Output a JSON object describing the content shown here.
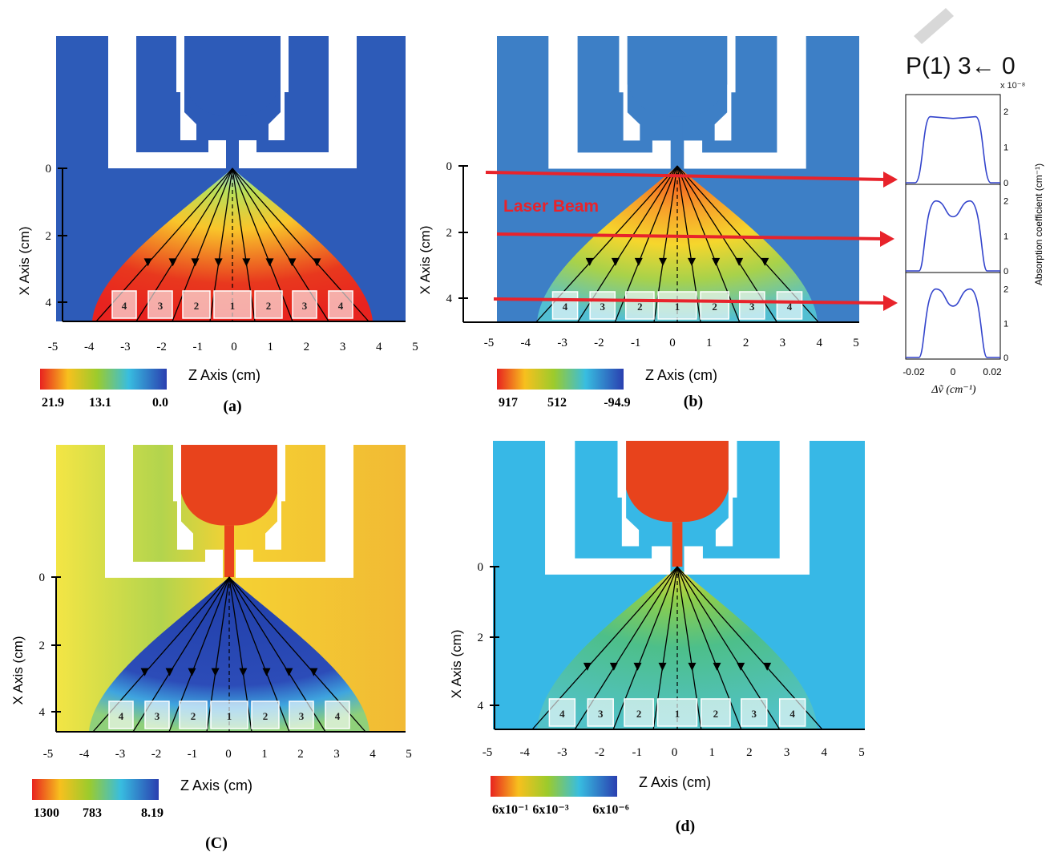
{
  "header": {
    "transition": "P(1) 3← 0"
  },
  "panels": [
    {
      "id": "a",
      "label": "(a)",
      "xaxis": "Z Axis (cm)",
      "yaxis": "X Axis  (cm)",
      "xticks": [
        "-5",
        "-4",
        "-3",
        "-2",
        "-1",
        "0",
        "1",
        "2",
        "3",
        "4",
        "5"
      ],
      "yticks": [
        "0",
        "2",
        "4"
      ],
      "colorbar": [
        "21.9",
        "13.1",
        "0.0"
      ],
      "cells": [
        "4",
        "3",
        "2",
        "1",
        "2",
        "3",
        "4"
      ],
      "scheme": "a"
    },
    {
      "id": "b",
      "label": "(b)",
      "xaxis": "Z Axis (cm)",
      "yaxis": "X Axis  (cm)",
      "xticks": [
        "-5",
        "-4",
        "-3",
        "-2",
        "-1",
        "0",
        "1",
        "2",
        "3",
        "4",
        "5"
      ],
      "yticks": [
        "0",
        "2",
        "4"
      ],
      "colorbar": [
        "917",
        "512",
        "-94.9"
      ],
      "cells": [
        "4",
        "3",
        "2",
        "1",
        "2",
        "3",
        "4"
      ],
      "scheme": "b",
      "annotation": "Laser Beam"
    },
    {
      "id": "c",
      "label": "(C)",
      "xaxis": "Z Axis (cm)",
      "yaxis": "X Axis  (cm)",
      "xticks": [
        "-5",
        "-4",
        "-3",
        "-2",
        "-1",
        "0",
        "1",
        "2",
        "3",
        "4",
        "5"
      ],
      "yticks": [
        "0",
        "2",
        "4"
      ],
      "colorbar": [
        "1300",
        "783",
        "8.19"
      ],
      "cells": [
        "4",
        "3",
        "2",
        "1",
        "2",
        "3",
        "4"
      ],
      "scheme": "c"
    },
    {
      "id": "d",
      "label": "(d)",
      "xaxis": "Z Axis (cm)",
      "yaxis": "X Axis  (cm)",
      "xticks": [
        "-5",
        "-4",
        "-3",
        "-2",
        "-1",
        "0",
        "1",
        "2",
        "3",
        "4",
        "5"
      ],
      "yticks": [
        "0",
        "2",
        "4"
      ],
      "colorbar": [
        "6x10⁻¹",
        "6x10⁻³",
        "6x10⁻⁶"
      ],
      "cells": [
        "4",
        "3",
        "2",
        "1",
        "2",
        "3",
        "4"
      ],
      "scheme": "d"
    }
  ],
  "spectra": {
    "exponent": "x 10⁻⁸",
    "ylabel": "Absorption coefficient (cm⁻¹)",
    "xlabel": "Δṽ (cm⁻¹)",
    "xticks": [
      "-0.02",
      "0",
      "0.02"
    ],
    "yticks": [
      "0",
      "1",
      "2"
    ],
    "plots": [
      {
        "shape": "flat",
        "peak": 1.85,
        "dip": 1.8
      },
      {
        "shape": "double",
        "peak": 2.0,
        "dip": 1.55
      },
      {
        "shape": "double",
        "peak": 2.0,
        "dip": 1.5
      }
    ]
  },
  "colors": {
    "field_a_bg": "#2d5bb8",
    "field_b_bg": "#3d7fc6",
    "field_c_bg": "#f3e23e",
    "field_d_bg": "#37b8e6",
    "nozzle_hot": "#e8431c",
    "laser": "#e8232b",
    "trace": "#3344cc"
  }
}
